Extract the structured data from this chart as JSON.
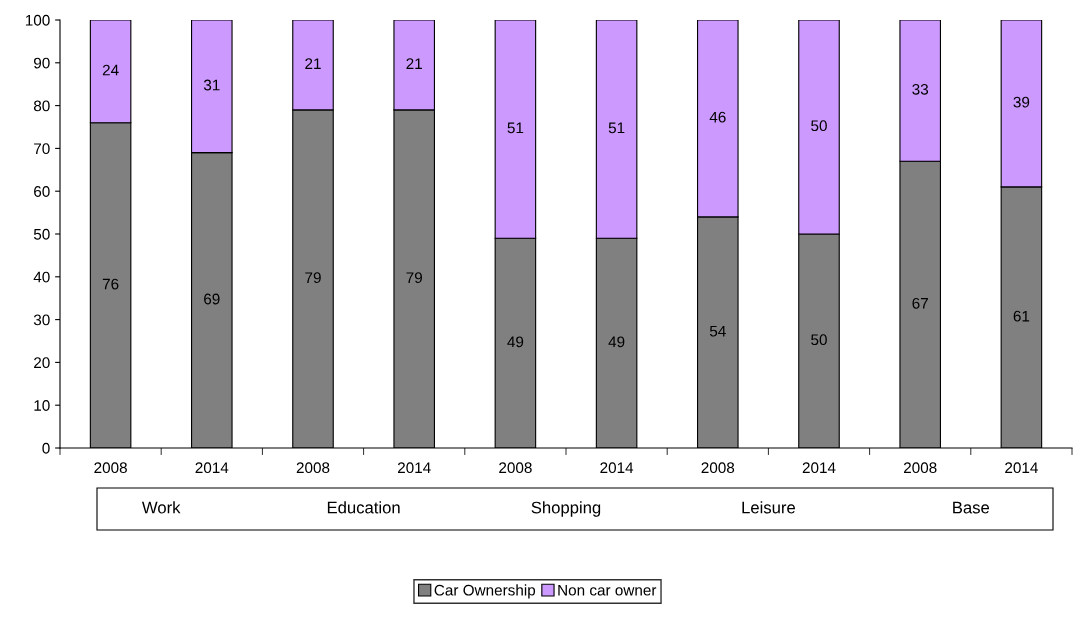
{
  "chart_data": {
    "type": "bar",
    "stacked": true,
    "categories": [
      "2008",
      "2014",
      "2008",
      "2014",
      "2008",
      "2014",
      "2008",
      "2014",
      "2008",
      "2014"
    ],
    "series": [
      {
        "name": "Car Ownership",
        "color": "#808080",
        "values": [
          76,
          69,
          79,
          79,
          49,
          49,
          54,
          50,
          67,
          61
        ]
      },
      {
        "name": "Non car owner",
        "color": "#cc99ff",
        "values": [
          24,
          31,
          21,
          21,
          51,
          51,
          46,
          50,
          33,
          39
        ]
      }
    ],
    "annotations": [
      "Work",
      "Education",
      "Shopping",
      "Leisure",
      "Base"
    ],
    "ylim": [
      0,
      100
    ],
    "yticks": [
      0,
      10,
      20,
      30,
      40,
      50,
      60,
      70,
      80,
      90,
      100
    ],
    "data_labels": true,
    "grid": false,
    "legend": "bottom"
  }
}
